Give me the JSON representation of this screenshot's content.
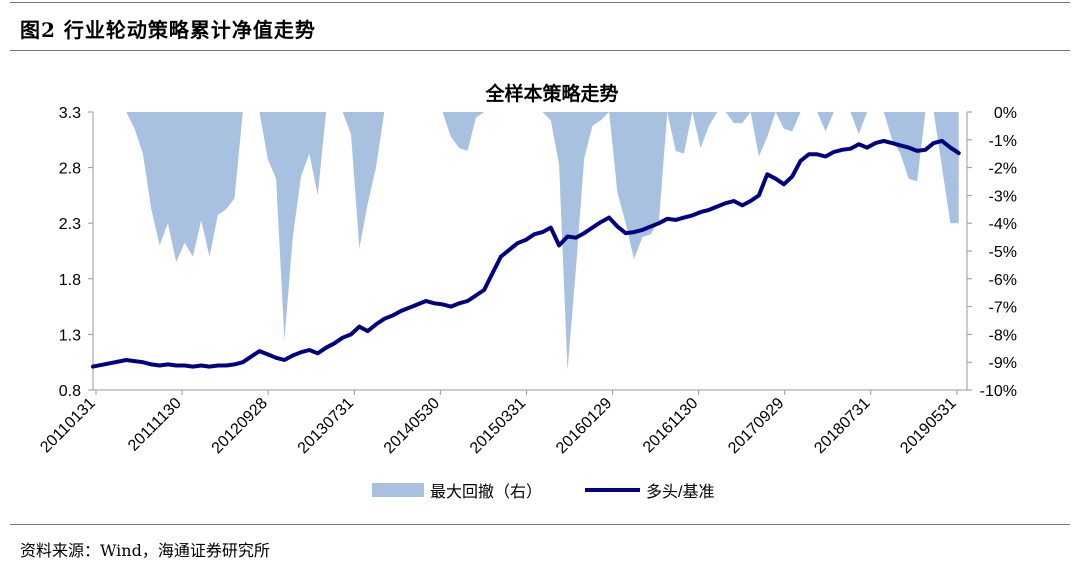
{
  "figure": {
    "number": "图2",
    "title": "行业轮动策略累计净值走势"
  },
  "source": "资料来源：Wind，海通证券研究所",
  "colors": {
    "line": "#000080",
    "area": "#a8c1e0",
    "axis": "#999999",
    "text": "#000000"
  },
  "chart_data": {
    "type": "line",
    "title": "全样本策略走势",
    "x_tick_labels": [
      "20110131",
      "20111130",
      "20120928",
      "20130731",
      "20140530",
      "20150331",
      "20160129",
      "20161130",
      "20170929",
      "20180731",
      "20190531"
    ],
    "y_left": {
      "ticks": [
        "3.3",
        "2.8",
        "2.3",
        "1.8",
        "1.3",
        "0.8"
      ],
      "range": [
        0.8,
        3.3
      ]
    },
    "y_right": {
      "ticks": [
        "0%",
        "-1%",
        "-2%",
        "-3%",
        "-4%",
        "-5%",
        "-6%",
        "-7%",
        "-8%",
        "-9%",
        "-10%"
      ],
      "range": [
        -10,
        0
      ]
    },
    "x_range": [
      0,
      105
    ],
    "grid": false,
    "legend_position": "bottom",
    "series": [
      {
        "name": "最大回撤（右）",
        "type": "area",
        "axis": "right",
        "x": [
          0,
          2,
          4,
          5,
          6,
          7,
          8,
          9,
          10,
          11,
          12,
          13,
          14,
          15,
          16,
          17,
          18,
          19,
          20,
          21,
          22,
          23,
          24,
          25,
          26,
          27,
          28,
          29,
          30,
          31,
          32,
          33,
          34,
          35,
          36,
          37,
          38,
          39,
          40,
          41,
          42,
          43,
          44,
          45,
          46,
          47,
          48,
          49,
          50,
          51,
          52,
          53,
          54,
          55,
          56,
          57,
          58,
          59,
          60,
          61,
          62,
          63,
          64,
          65,
          66,
          67,
          68,
          69,
          70,
          71,
          72,
          73,
          74,
          75,
          76,
          77,
          78,
          79,
          80,
          81,
          82,
          83,
          84,
          85,
          86,
          87,
          88,
          89,
          90,
          91,
          92,
          93,
          94,
          95,
          96,
          97,
          98,
          99,
          100,
          101,
          102,
          103,
          104
        ],
        "values": [
          0,
          0,
          0,
          -0.6,
          -1.5,
          -3.5,
          -4.8,
          -4.0,
          -5.4,
          -4.7,
          -5.2,
          -3.9,
          -5.2,
          -3.7,
          -3.5,
          -3.1,
          0,
          0,
          0,
          -1.7,
          -2.4,
          -8.2,
          -4.5,
          -2.3,
          -1.5,
          -3.0,
          0,
          0,
          0,
          -0.8,
          -4.9,
          -3.3,
          -2.0,
          0,
          0,
          0,
          0,
          0,
          0,
          0,
          0,
          -0.9,
          -1.3,
          -1.4,
          -0.2,
          0,
          0,
          0,
          0,
          0,
          0,
          0,
          0,
          -0.3,
          -1.9,
          -9.3,
          -5.7,
          -1.7,
          -0.5,
          -0.3,
          0,
          -2.9,
          -4.0,
          -5.3,
          -4.5,
          -4.4,
          -3.9,
          0,
          -1.4,
          -1.5,
          0,
          -1.3,
          -0.5,
          0,
          0,
          -0.4,
          -0.4,
          0,
          -1.6,
          -0.9,
          0,
          -0.6,
          -0.7,
          0,
          0,
          0,
          -0.7,
          0,
          0,
          0,
          -0.8,
          0,
          0,
          0,
          -1.0,
          -1.5,
          -2.4,
          -2.5,
          0,
          0,
          -2.0,
          -4.0,
          -4.0
        ]
      },
      {
        "name": "多头/基准",
        "type": "line",
        "axis": "left",
        "x": [
          0,
          2,
          4,
          5,
          6,
          7,
          8,
          9,
          10,
          11,
          12,
          13,
          14,
          15,
          16,
          17,
          18,
          19,
          20,
          21,
          22,
          23,
          24,
          25,
          26,
          27,
          28,
          29,
          30,
          31,
          32,
          33,
          34,
          35,
          36,
          37,
          38,
          39,
          40,
          41,
          42,
          43,
          44,
          45,
          46,
          47,
          48,
          49,
          50,
          51,
          52,
          53,
          54,
          55,
          56,
          57,
          58,
          59,
          60,
          61,
          62,
          63,
          64,
          65,
          66,
          67,
          68,
          69,
          70,
          71,
          72,
          73,
          74,
          75,
          76,
          77,
          78,
          79,
          80,
          81,
          82,
          83,
          84,
          85,
          86,
          87,
          88,
          89,
          90,
          91,
          92,
          93,
          94,
          95,
          96,
          97,
          98,
          99,
          100,
          101,
          102,
          103,
          104
        ],
        "values": [
          1.01,
          1.04,
          1.07,
          1.06,
          1.05,
          1.03,
          1.02,
          1.03,
          1.02,
          1.02,
          1.01,
          1.02,
          1.01,
          1.02,
          1.02,
          1.03,
          1.05,
          1.1,
          1.15,
          1.12,
          1.09,
          1.07,
          1.11,
          1.14,
          1.16,
          1.13,
          1.18,
          1.22,
          1.27,
          1.3,
          1.37,
          1.33,
          1.39,
          1.44,
          1.47,
          1.51,
          1.54,
          1.57,
          1.6,
          1.58,
          1.57,
          1.55,
          1.58,
          1.6,
          1.65,
          1.7,
          1.85,
          2.0,
          2.06,
          2.12,
          2.15,
          2.2,
          2.22,
          2.26,
          2.1,
          2.18,
          2.17,
          2.21,
          2.26,
          2.31,
          2.35,
          2.27,
          2.21,
          2.22,
          2.24,
          2.27,
          2.3,
          2.34,
          2.33,
          2.35,
          2.37,
          2.4,
          2.42,
          2.45,
          2.48,
          2.5,
          2.46,
          2.5,
          2.55,
          2.74,
          2.7,
          2.65,
          2.72,
          2.86,
          2.92,
          2.92,
          2.9,
          2.94,
          2.96,
          2.97,
          3.01,
          2.98,
          3.02,
          3.04,
          3.02,
          3.0,
          2.98,
          2.95,
          2.96,
          3.02,
          3.04,
          2.98,
          2.93
        ]
      }
    ]
  }
}
